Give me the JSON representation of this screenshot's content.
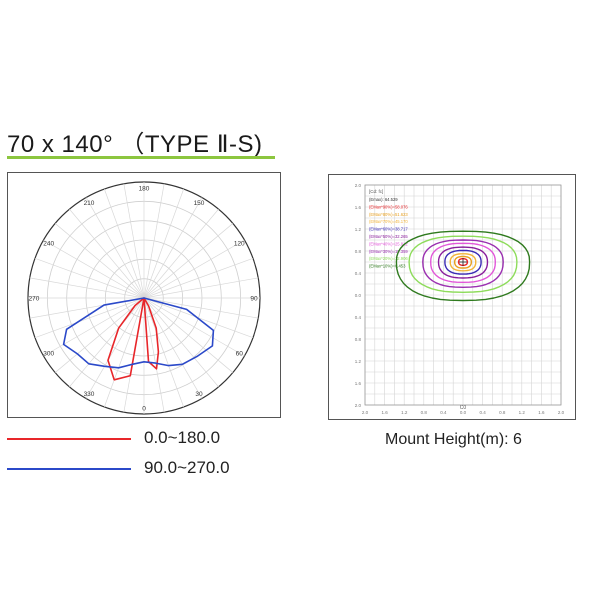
{
  "title": "70 x 140°  （TYPE Ⅱ-S)",
  "colors": {
    "accent": "#8cc63f",
    "c0_180": "#e8262a",
    "c90_270": "#2b49c9"
  },
  "legend": [
    {
      "label": "0.0~180.0",
      "color": "#e8262a"
    },
    {
      "label": "90.0~270.0",
      "color": "#2b49c9"
    }
  ],
  "mount_height": {
    "label": "Mount Height(m):",
    "value": "6"
  },
  "chart_data": [
    {
      "type": "polar",
      "angle_labels": [
        "180",
        "150",
        "120",
        "90",
        "60",
        "30",
        "0",
        "330",
        "300",
        "270",
        "240",
        "210"
      ],
      "series": [
        {
          "name": "0.0~180.0",
          "points": [
            [
              0,
              0.0
            ],
            [
              -10,
              0.68
            ],
            [
              -20,
              0.75
            ],
            [
              -30,
              0.62
            ],
            [
              -40,
              0.34
            ],
            [
              -50,
              0.1
            ],
            [
              0,
              0.0
            ],
            [
              4,
              0.55
            ],
            [
              10,
              0.62
            ],
            [
              15,
              0.48
            ],
            [
              22,
              0.28
            ],
            [
              30,
              0.08
            ],
            [
              40,
              0.0
            ]
          ]
        },
        {
          "name": "90.0~270.0",
          "points": [
            [
              -90,
              0.0
            ],
            [
              -80,
              0.35
            ],
            [
              -68,
              0.72
            ],
            [
              -60,
              0.8
            ],
            [
              -50,
              0.75
            ],
            [
              -40,
              0.74
            ],
            [
              -30,
              0.68
            ],
            [
              -20,
              0.64
            ],
            [
              -10,
              0.58
            ],
            [
              0,
              0.55
            ],
            [
              10,
              0.57
            ],
            [
              20,
              0.62
            ],
            [
              30,
              0.66
            ],
            [
              42,
              0.68
            ],
            [
              55,
              0.72
            ],
            [
              65,
              0.66
            ],
            [
              75,
              0.38
            ],
            [
              90,
              0.0
            ]
          ]
        }
      ]
    },
    {
      "type": "contour",
      "info": [
        "(Emax): 64.529",
        "(EMax*90%)=58.076",
        "(EMax*80%)=51.623",
        "(EMax*70%)=45.170",
        "(EMax*60%)=38.717",
        "(EMax*50%)=32.265",
        "(EMax*40%)=25.812",
        "(EMax*30%)=19.359",
        "(EMax*20%)=12.906",
        "(EMax*10%)=6.453"
      ],
      "header": "[Cd: fc]",
      "x_tick_labels": [
        "2.0",
        "1.6",
        "1.2",
        "0.8",
        "0.4",
        "0.0",
        "0.4",
        "0.8",
        "1.2",
        "1.6",
        "2.0"
      ],
      "y_tick_labels": [
        "2.0",
        "1.6",
        "1.2",
        "0.8",
        "0.4",
        "0.0",
        "0.4",
        "0.8",
        "1.2",
        "1.6",
        "2.0"
      ],
      "x_label": "C0",
      "levels": [
        {
          "name": "10%",
          "color": "#2f7a1e",
          "rx": 1.36,
          "ry_top": 0.56,
          "ry_bot": 0.7
        },
        {
          "name": "20%",
          "color": "#8edc5b",
          "rx": 1.1,
          "ry_top": 0.47,
          "ry_bot": 0.55
        },
        {
          "name": "30%",
          "color": "#9a2fb0",
          "rx": 0.82,
          "ry_top": 0.4,
          "ry_bot": 0.46
        },
        {
          "name": "40%",
          "color": "#e257d9",
          "rx": 0.66,
          "ry_top": 0.34,
          "ry_bot": 0.37
        },
        {
          "name": "50%",
          "color": "#8a1d9c",
          "rx": 0.5,
          "ry_top": 0.27,
          "ry_bot": 0.29
        },
        {
          "name": "60%",
          "color": "#3a2ab5",
          "rx": 0.37,
          "ry_top": 0.21,
          "ry_bot": 0.22
        },
        {
          "name": "70%",
          "color": "#f2b53a",
          "rx": 0.26,
          "ry_top": 0.15,
          "ry_bot": 0.16
        },
        {
          "name": "80%",
          "color": "#e8a020",
          "rx": 0.17,
          "ry_top": 0.1,
          "ry_bot": 0.11
        },
        {
          "name": "90%",
          "color": "#e8262a",
          "rx": 0.09,
          "ry_top": 0.06,
          "ry_bot": 0.06
        }
      ],
      "center": [
        0.0,
        -0.13
      ]
    }
  ]
}
